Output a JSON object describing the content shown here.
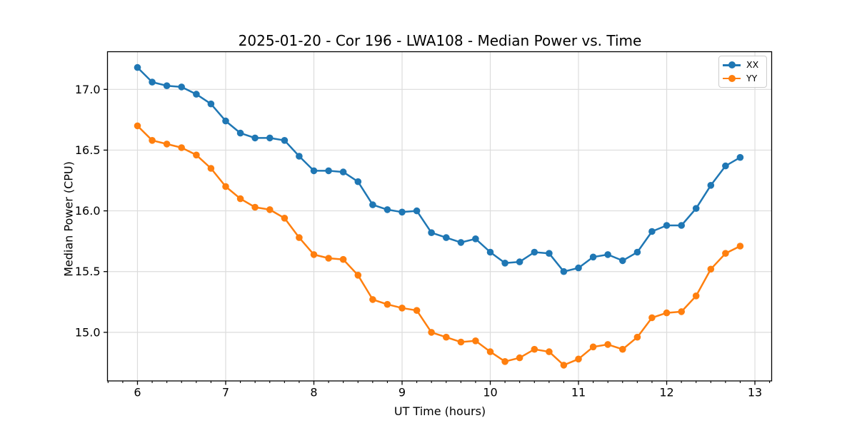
{
  "chart_data": {
    "type": "line",
    "title": "2025-01-20 - Cor 196 - LWA108 - Median Power vs. Time",
    "xlabel": "UT Time (hours)",
    "ylabel": "Median Power (CPU)",
    "xlim": [
      5.66,
      13.19
    ],
    "ylim": [
      14.6,
      17.31
    ],
    "x_ticks": [
      6,
      7,
      8,
      9,
      10,
      11,
      12,
      13
    ],
    "x_tick_labels": [
      "6",
      "7",
      "8",
      "9",
      "10",
      "11",
      "12",
      "13"
    ],
    "x_minor_tick_step": 0.166667,
    "y_ticks": [
      15.0,
      15.5,
      16.0,
      16.5,
      17.0
    ],
    "y_tick_labels": [
      "15.0",
      "15.5",
      "16.0",
      "16.5",
      "17.0"
    ],
    "grid": true,
    "grid_color": "#dcdcdc",
    "legend_position": "upper right",
    "x": [
      6.0,
      6.167,
      6.333,
      6.5,
      6.667,
      6.833,
      7.0,
      7.167,
      7.333,
      7.5,
      7.667,
      7.833,
      8.0,
      8.167,
      8.333,
      8.5,
      8.667,
      8.833,
      9.0,
      9.167,
      9.333,
      9.5,
      9.667,
      9.833,
      10.0,
      10.167,
      10.333,
      10.5,
      10.667,
      10.833,
      11.0,
      11.167,
      11.333,
      11.5,
      11.667,
      11.833,
      12.0,
      12.167,
      12.333,
      12.5,
      12.667,
      12.833
    ],
    "series": [
      {
        "name": "XX",
        "color": "#1f77b4",
        "values": [
          17.18,
          17.06,
          17.03,
          17.02,
          16.96,
          16.88,
          16.74,
          16.64,
          16.6,
          16.6,
          16.58,
          16.45,
          16.33,
          16.33,
          16.32,
          16.24,
          16.05,
          16.01,
          15.99,
          16.0,
          15.82,
          15.78,
          15.74,
          15.77,
          15.66,
          15.57,
          15.58,
          15.66,
          15.65,
          15.5,
          15.53,
          15.62,
          15.64,
          15.59,
          15.66,
          15.83,
          15.88,
          15.88,
          16.02,
          16.21,
          16.37,
          16.44
        ]
      },
      {
        "name": "YY",
        "color": "#ff7f0e",
        "values": [
          16.7,
          16.58,
          16.55,
          16.52,
          16.46,
          16.35,
          16.2,
          16.1,
          16.03,
          16.01,
          15.94,
          15.78,
          15.64,
          15.61,
          15.6,
          15.47,
          15.27,
          15.23,
          15.2,
          15.18,
          15.0,
          14.96,
          14.92,
          14.93,
          14.84,
          14.76,
          14.79,
          14.86,
          14.84,
          14.73,
          14.78,
          14.88,
          14.9,
          14.86,
          14.96,
          15.12,
          15.16,
          15.17,
          15.3,
          15.52,
          15.65,
          15.71
        ]
      }
    ]
  }
}
